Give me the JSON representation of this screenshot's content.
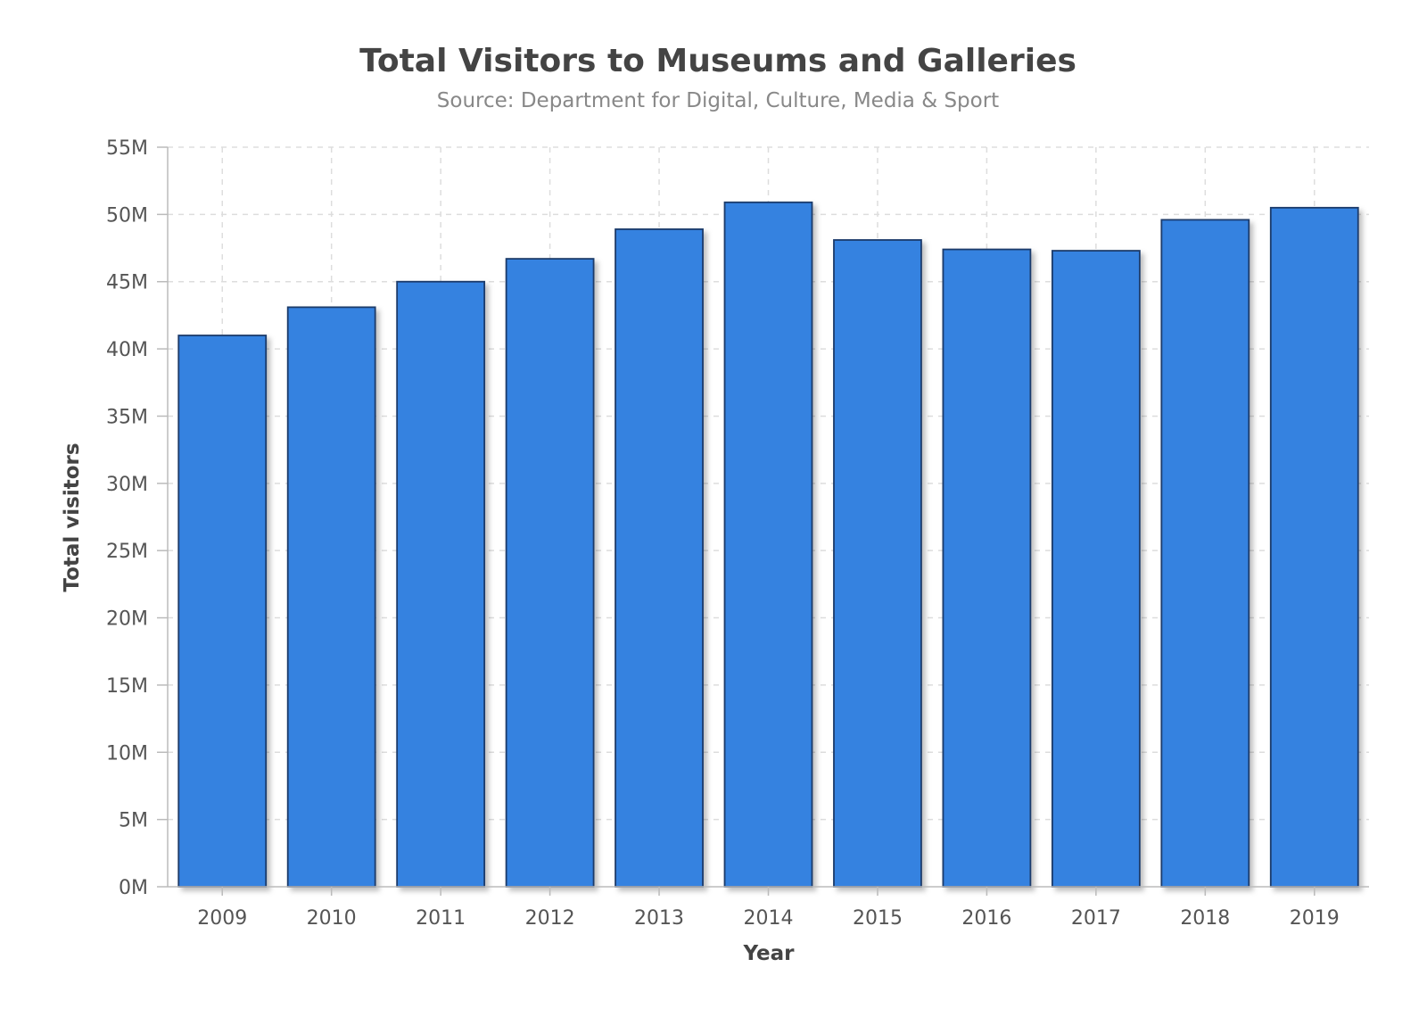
{
  "chart_data": {
    "type": "bar",
    "title": "Total Visitors to Museums and Galleries",
    "subtitle": "Source: Department for Digital, Culture, Media & Sport",
    "xlabel": "Year",
    "ylabel": "Total visitors",
    "categories": [
      "2009",
      "2010",
      "2011",
      "2012",
      "2013",
      "2014",
      "2015",
      "2016",
      "2017",
      "2018",
      "2019"
    ],
    "values": [
      41000000,
      43100000,
      45000000,
      46700000,
      48900000,
      50900000,
      48100000,
      47400000,
      47300000,
      49600000,
      50500000
    ],
    "ylim": [
      0,
      55000000
    ],
    "ytick_values": [
      0,
      5000000,
      10000000,
      15000000,
      20000000,
      25000000,
      30000000,
      35000000,
      40000000,
      45000000,
      50000000,
      55000000
    ],
    "ytick_labels": [
      "0M",
      "5M",
      "10M",
      "15M",
      "20M",
      "25M",
      "30M",
      "35M",
      "40M",
      "45M",
      "50M",
      "55M"
    ],
    "grid": true,
    "colors": {
      "bar": "#3682e0",
      "bar_border": "#1a3a6b"
    }
  }
}
